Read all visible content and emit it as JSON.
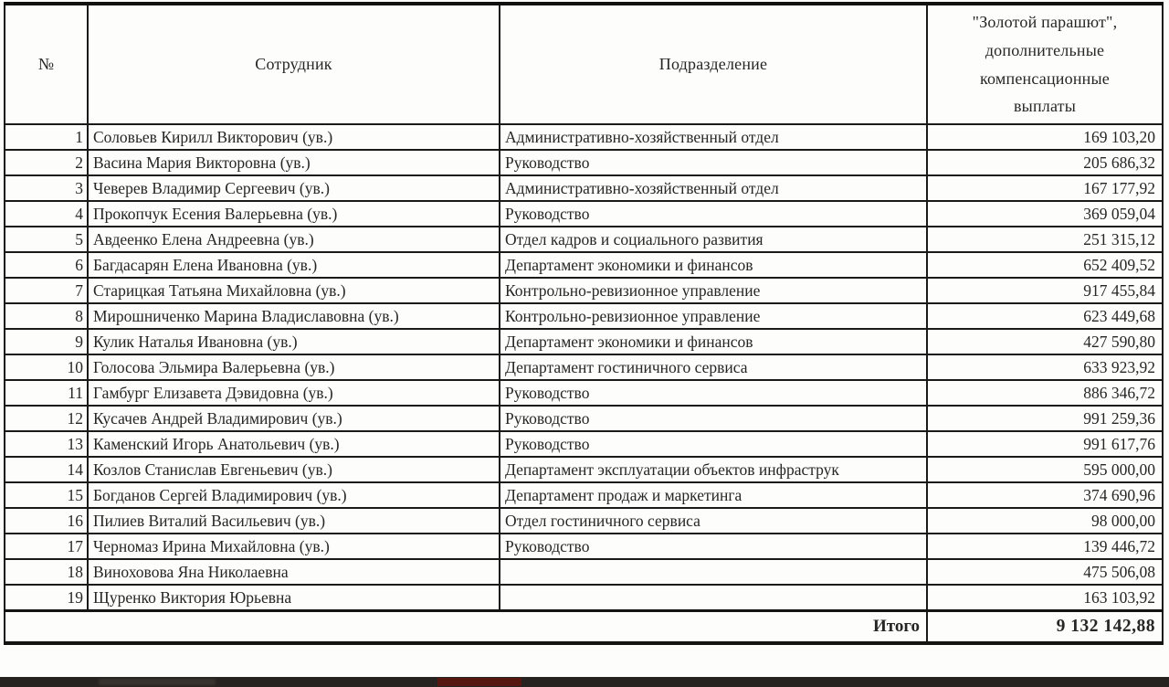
{
  "colors": {
    "border": "#1a1a1a",
    "text": "#262626",
    "page_bg": "#fdfdfb",
    "bottom_bar": "#272320",
    "bottom_bar_red_mark": "#55170f"
  },
  "table": {
    "headers": {
      "num": "№",
      "employee": "Сотрудник",
      "department": "Подразделение",
      "amount": "\"Золотой парашют\",\nдополнительные\nкомпенсационные\nвыплаты"
    },
    "rows": [
      {
        "num": "1",
        "name": "Соловьев Кирилл Викторович (ув.)",
        "dept": "Административно-хозяйственный отдел",
        "amount": "169 103,20"
      },
      {
        "num": "2",
        "name": "Васина Мария Викторовна (ув.)",
        "dept": "Руководство",
        "amount": "205 686,32"
      },
      {
        "num": "3",
        "name": "Чеверев Владимир Сергеевич (ув.)",
        "dept": "Административно-хозяйственный отдел",
        "amount": "167 177,92"
      },
      {
        "num": "4",
        "name": "Прокопчук Есения Валерьевна (ув.)",
        "dept": "Руководство",
        "amount": "369 059,04"
      },
      {
        "num": "5",
        "name": "Авдеенко Елена Андреевна (ув.)",
        "dept": "Отдел кадров и социального развития",
        "amount": "251 315,12"
      },
      {
        "num": "6",
        "name": "Багдасарян Елена Ивановна (ув.)",
        "dept": "Департамент экономики и финансов",
        "amount": "652 409,52"
      },
      {
        "num": "7",
        "name": "Старицкая Татьяна Михайловна (ув.)",
        "dept": "Контрольно-ревизионное управление",
        "amount": "917 455,84"
      },
      {
        "num": "8",
        "name": "Мирошниченко Марина Владиславовна (ув.)",
        "dept": "Контрольно-ревизионное управление",
        "amount": "623 449,68"
      },
      {
        "num": "9",
        "name": "Кулик Наталья Ивановна (ув.)",
        "dept": "Департамент экономики и финансов",
        "amount": "427 590,80"
      },
      {
        "num": "10",
        "name": "Голосова Эльмира Валерьевна (ув.)",
        "dept": "Департамент гостиничного сервиса",
        "amount": "633 923,92"
      },
      {
        "num": "11",
        "name": "Гамбург Елизавета Дэвидовна (ув.)",
        "dept": "Руководство",
        "amount": "886 346,72"
      },
      {
        "num": "12",
        "name": "Кусачев Андрей Владимирович (ув.)",
        "dept": "Руководство",
        "amount": "991 259,36"
      },
      {
        "num": "13",
        "name": "Каменский Игорь Анатольевич (ув.)",
        "dept": "Руководство",
        "amount": "991 617,76"
      },
      {
        "num": "14",
        "name": "Козлов Станислав Евгеньевич (ув.)",
        "dept": "Департамент эксплуатации объектов инфраструк",
        "amount": "595 000,00"
      },
      {
        "num": "15",
        "name": "Богданов Сергей Владимирович (ув.)",
        "dept": "Департамент продаж и маркетинга",
        "amount": "374 690,96"
      },
      {
        "num": "16",
        "name": "Пилиев Виталий Васильевич (ув.)",
        "dept": "Отдел гостиничного сервиса",
        "amount": "98 000,00"
      },
      {
        "num": "17",
        "name": "Черномаз Ирина Михайловна (ув.)",
        "dept": "Руководство",
        "amount": "139 446,72"
      },
      {
        "num": "18",
        "name": "Виноховова Яна Николаевна",
        "dept": "",
        "amount": "475 506,08"
      },
      {
        "num": "19",
        "name": "Щуренко Виктория Юрьевна",
        "dept": "",
        "amount": "163 103,92"
      }
    ],
    "total": {
      "label": "Итого",
      "amount": "9 132 142,88"
    }
  }
}
